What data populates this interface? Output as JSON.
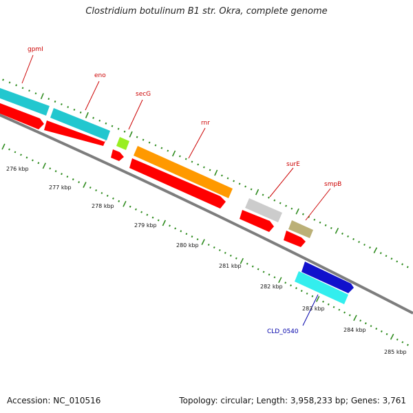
{
  "title": "Clostridium botulinum B1 str. Okra, complete genome",
  "footer": {
    "accession": "Accession: NC_010516",
    "summary": "Topology: circular; Length: 3,958,233 bp; Genes: 3,761"
  },
  "colors": {
    "backbone": "#8a8a8a",
    "tick": "#2e8b1e",
    "cds": "#ff0000",
    "label_red": "#cc0000",
    "label_blue": "#0000aa",
    "teal": "#22c7cf",
    "lime": "#99ee22",
    "orange": "#ff9900",
    "gray": "#cccccc",
    "khaki": "#bbb077",
    "blue": "#1111cc",
    "cyan": "#33eeee"
  },
  "kbp_ticks": [
    "276 kbp",
    "277 kbp",
    "278 kbp",
    "279 kbp",
    "280 kbp",
    "281 kbp",
    "282 kbp",
    "283 kbp",
    "284 kbp",
    "285 kbp"
  ],
  "gene_labels": [
    "gpmI",
    "eno",
    "secG",
    "rnr",
    "surE",
    "smpB",
    "CLD_0540"
  ]
}
